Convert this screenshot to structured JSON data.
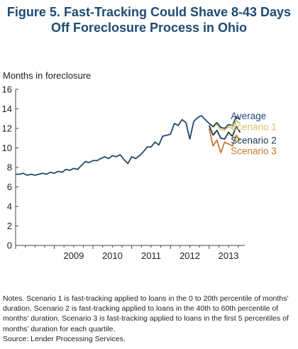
{
  "title_line1": "Figure 5. Fast-Tracking Could Shave 8-43 Days",
  "title_line2": "Off Foreclosure Process in Ohio",
  "notes": "Notes. Scenario 1 is fast-tracking applied to loans in the 0 to 20th percentile of months’ duration. Scenario 2 is fast-tracking applied to loans in the 40th to 60th percentile of months’ duration. Scenario 3 is fast-tracking applied to loans in the first 5 percentiles of months’ duration for each quartile.",
  "source": "Source: Lender Processing Services.",
  "chart_data": {
    "type": "line",
    "ylabel": "Months in foreclosure",
    "xlabel": "",
    "ylim": [
      0,
      16
    ],
    "yticks": [
      0,
      2,
      4,
      6,
      8,
      10,
      12,
      14,
      16
    ],
    "xlim": [
      2008.0,
      2013.92
    ],
    "xticks": [
      {
        "label": "2009",
        "x": 2009.0
      },
      {
        "label": "2010",
        "x": 2010.0
      },
      {
        "label": "2011",
        "x": 2011.0
      },
      {
        "label": "2012",
        "x": 2012.0
      },
      {
        "label": "2013",
        "x": 2013.0
      }
    ],
    "grid": false,
    "legend": "right, beside line ends",
    "series": [
      {
        "name": "Average",
        "color": "#1d4b73",
        "x": [
          2008.0,
          2008.1,
          2008.2,
          2008.3,
          2008.4,
          2008.5,
          2008.6,
          2008.7,
          2008.8,
          2008.9,
          2009.0,
          2009.1,
          2009.2,
          2009.3,
          2009.4,
          2009.5,
          2009.6,
          2009.7,
          2009.8,
          2009.9,
          2010.0,
          2010.1,
          2010.2,
          2010.3,
          2010.4,
          2010.5,
          2010.6,
          2010.7,
          2010.8,
          2010.9,
          2011.0,
          2011.1,
          2011.2,
          2011.3,
          2011.4,
          2011.5,
          2011.6,
          2011.7,
          2011.8,
          2011.9,
          2012.0,
          2012.1,
          2012.2,
          2012.3,
          2012.4,
          2012.5,
          2012.6,
          2012.7,
          2012.8,
          2012.9,
          2013.0,
          2013.1,
          2013.2,
          2013.3,
          2013.4,
          2013.5,
          2013.6,
          2013.7,
          2013.8
        ],
        "values": [
          7.3,
          7.3,
          7.4,
          7.2,
          7.3,
          7.2,
          7.3,
          7.4,
          7.3,
          7.5,
          7.4,
          7.6,
          7.5,
          7.8,
          7.7,
          7.9,
          7.8,
          8.2,
          8.6,
          8.5,
          8.7,
          8.7,
          8.9,
          9.1,
          8.9,
          9.2,
          9.1,
          9.3,
          8.8,
          8.4,
          9.1,
          8.9,
          9.2,
          9.6,
          10.1,
          10.1,
          10.6,
          10.3,
          11.2,
          11.3,
          11.4,
          12.5,
          12.3,
          12.9,
          12.6,
          10.9,
          12.7,
          13.1,
          13.3,
          12.9,
          12.5,
          12.2,
          12.6,
          12.1,
          12.0,
          12.4,
          12.3,
          13.2,
          12.9
        ]
      },
      {
        "name": "Scenario 1",
        "color": "#d8c26a",
        "x": [
          2013.0,
          2013.1,
          2013.2,
          2013.3,
          2013.4,
          2013.5,
          2013.6,
          2013.7,
          2013.8
        ],
        "values": [
          12.5,
          12.1,
          12.4,
          11.9,
          11.8,
          12.2,
          12.0,
          12.8,
          12.5
        ]
      },
      {
        "name": "Scenario 2",
        "color": "#1f3a4a",
        "x": [
          2013.0,
          2013.1,
          2013.2,
          2013.3,
          2013.4,
          2013.5,
          2013.6,
          2013.7,
          2013.8
        ],
        "values": [
          12.3,
          11.3,
          11.8,
          11.0,
          10.9,
          11.6,
          11.2,
          12.2,
          11.6
        ]
      },
      {
        "name": "Scenario 3",
        "color": "#c67830",
        "x": [
          2013.0,
          2013.1,
          2013.2,
          2013.3,
          2013.4,
          2013.5,
          2013.6,
          2013.7,
          2013.8
        ],
        "values": [
          12.0,
          10.2,
          10.8,
          9.5,
          10.6,
          10.4,
          10.2,
          11.3,
          10.7
        ]
      }
    ]
  }
}
